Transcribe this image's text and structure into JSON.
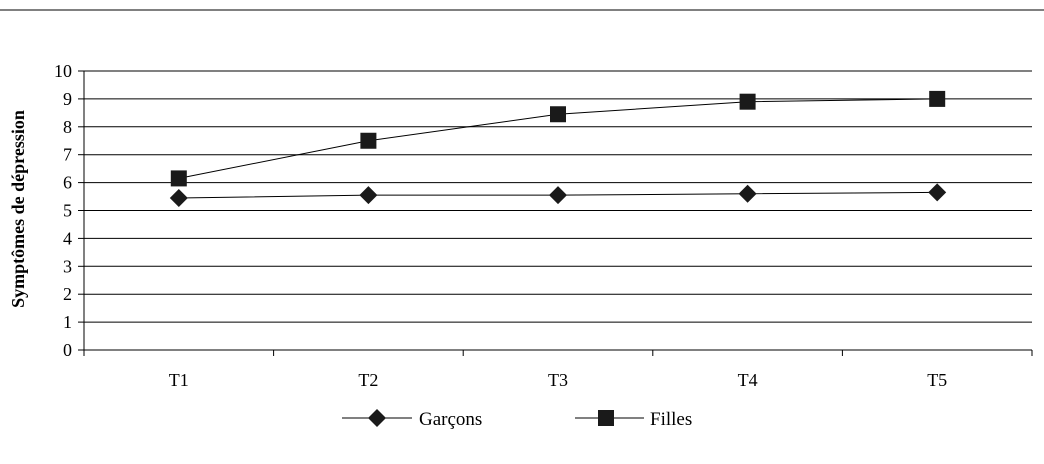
{
  "chart_data": {
    "type": "line",
    "title": "",
    "xlabel": "",
    "ylabel": "Symptômes de dépression",
    "categories": [
      "T1",
      "T2",
      "T3",
      "T4",
      "T5"
    ],
    "ylim": [
      0,
      10
    ],
    "yticks": [
      "0",
      "1",
      "2",
      "3",
      "4",
      "5",
      "6",
      "7",
      "8",
      "9",
      "10"
    ],
    "grid": true,
    "legend_position": "bottom",
    "series": [
      {
        "name": "Garçons",
        "marker": "diamond",
        "color": "#000000",
        "values": [
          5.45,
          5.55,
          5.55,
          5.6,
          5.65
        ]
      },
      {
        "name": "Filles",
        "marker": "square",
        "color": "#000000",
        "values": [
          6.15,
          7.5,
          8.45,
          8.9,
          9.0
        ]
      }
    ]
  }
}
